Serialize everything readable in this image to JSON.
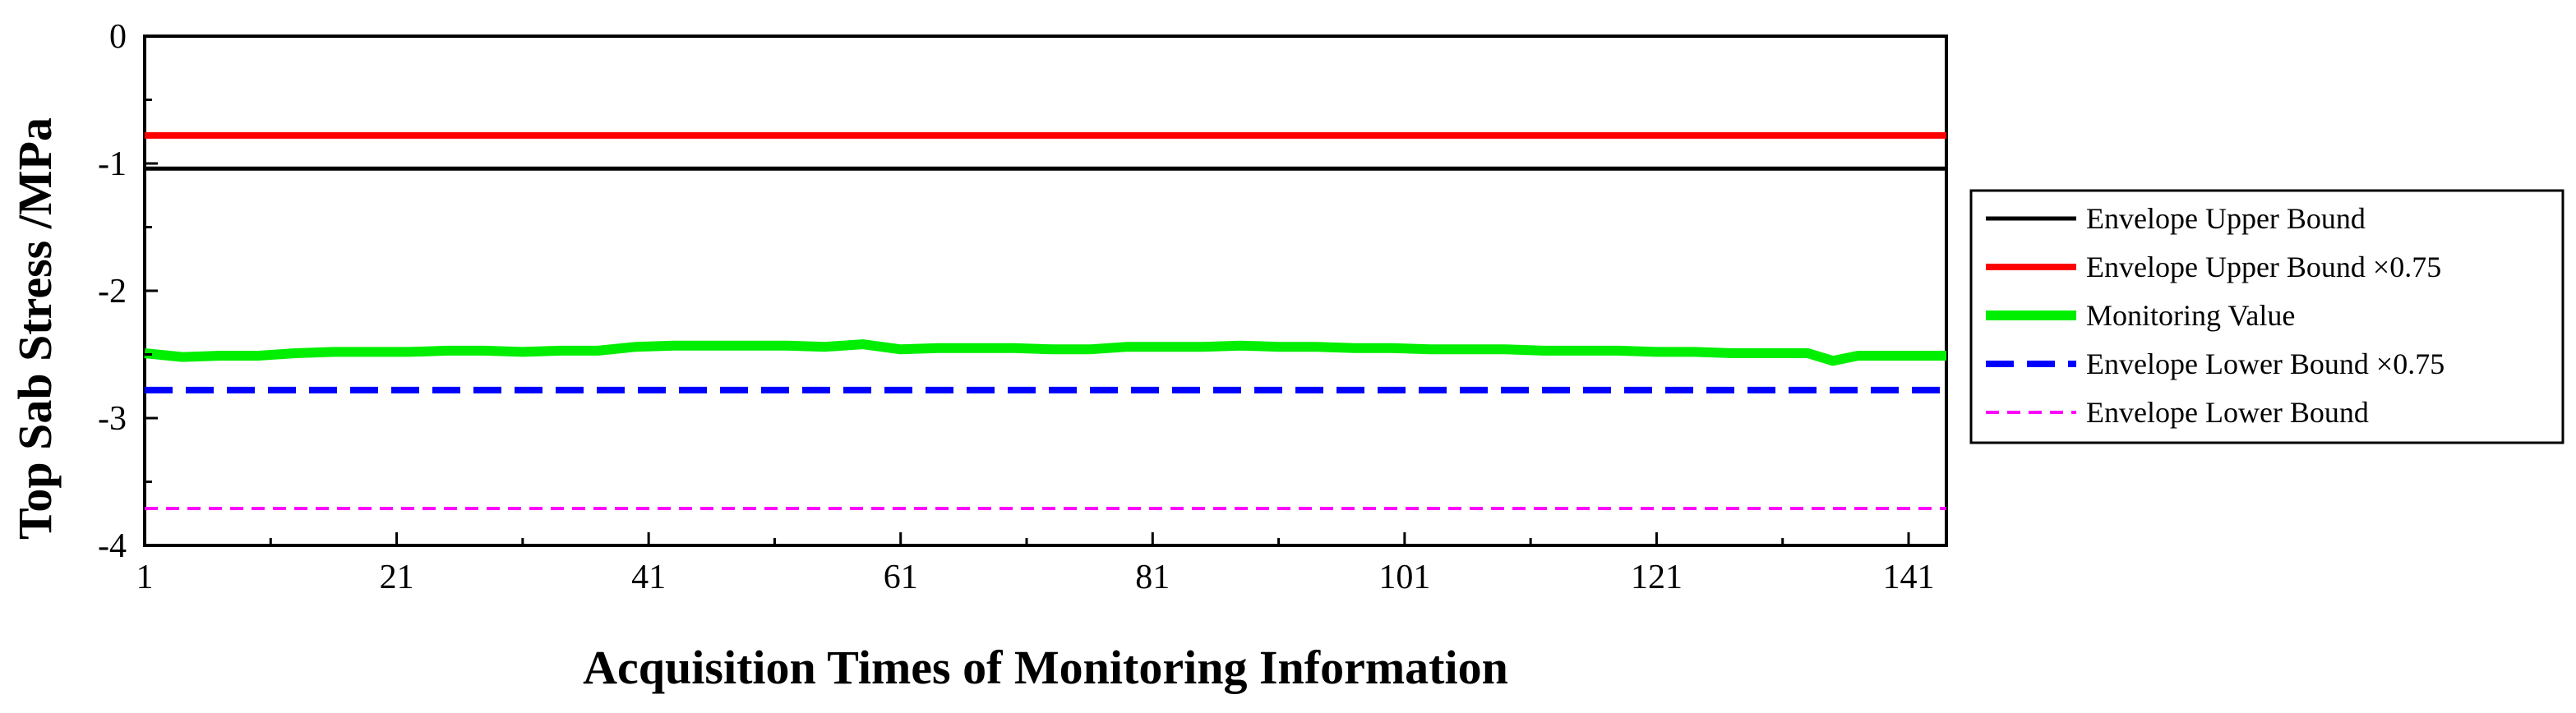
{
  "chart_data": {
    "type": "line",
    "xlabel": "Acquisition Times of Monitoring Information",
    "ylabel": "Top Sab Stress /MPa",
    "xlim": [
      1,
      144
    ],
    "ylim": [
      -4,
      0
    ],
    "x_ticks": [
      1,
      21,
      41,
      61,
      81,
      101,
      121,
      141
    ],
    "y_ticks": [
      0,
      -1,
      -2,
      -3,
      -4
    ],
    "grid": false,
    "legend_position": "outside-right",
    "series": [
      {
        "name": "Envelope Upper Bound",
        "color": "#000000",
        "style": "solid",
        "x": [
          1,
          144
        ],
        "y": [
          -1.04,
          -1.04
        ]
      },
      {
        "name": "Envelope Upper Bound ×0.75",
        "color": "#ff0000",
        "style": "solid",
        "x": [
          1,
          144
        ],
        "y": [
          -0.78,
          -0.78
        ]
      },
      {
        "name": "Monitoring Value",
        "color": "#00ee00",
        "style": "solid",
        "x": [
          1,
          4,
          7,
          10,
          13,
          16,
          19,
          22,
          25,
          28,
          31,
          34,
          37,
          40,
          43,
          46,
          49,
          52,
          55,
          58,
          61,
          64,
          67,
          70,
          73,
          76,
          79,
          82,
          85,
          88,
          91,
          94,
          97,
          100,
          103,
          106,
          109,
          112,
          115,
          118,
          121,
          124,
          127,
          130,
          133,
          135,
          137,
          140,
          144
        ],
        "y": [
          -2.49,
          -2.52,
          -2.51,
          -2.51,
          -2.49,
          -2.48,
          -2.48,
          -2.48,
          -2.47,
          -2.47,
          -2.48,
          -2.47,
          -2.47,
          -2.44,
          -2.43,
          -2.43,
          -2.43,
          -2.43,
          -2.44,
          -2.42,
          -2.46,
          -2.45,
          -2.45,
          -2.45,
          -2.46,
          -2.46,
          -2.44,
          -2.44,
          -2.44,
          -2.43,
          -2.44,
          -2.44,
          -2.45,
          -2.45,
          -2.46,
          -2.46,
          -2.46,
          -2.47,
          -2.47,
          -2.47,
          -2.48,
          -2.48,
          -2.49,
          -2.49,
          -2.49,
          -2.55,
          -2.51,
          -2.51,
          -2.51
        ]
      },
      {
        "name": "Envelope Lower Bound ×0.75",
        "color": "#0000ff",
        "style": "dashed",
        "x": [
          1,
          144
        ],
        "y": [
          -2.78,
          -2.78
        ]
      },
      {
        "name": "Envelope Lower Bound",
        "color": "#ff00ff",
        "style": "dashed-thin",
        "x": [
          1,
          144
        ],
        "y": [
          -3.71,
          -3.71
        ]
      }
    ]
  }
}
